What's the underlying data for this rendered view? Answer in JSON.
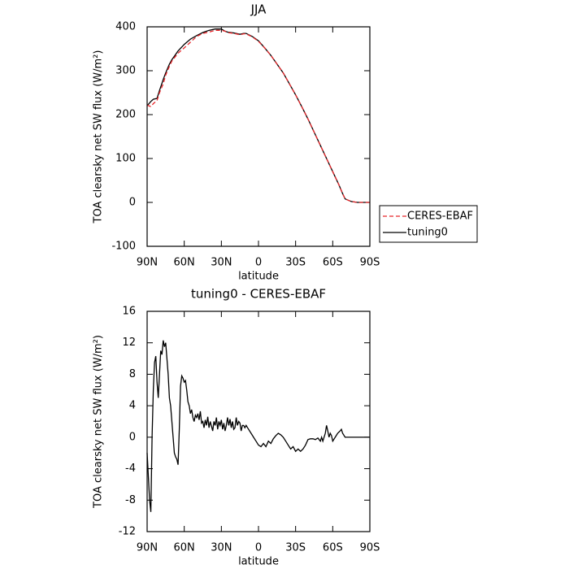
{
  "chart_data": [
    {
      "type": "line",
      "title": "JJA",
      "xlabel": "latitude",
      "ylabel": "TOA clearsky net SW flux (W/m²)",
      "xlim": [
        90,
        -90
      ],
      "ylim": [
        -100,
        400
      ],
      "xticks": [
        {
          "value": 90,
          "label": "90N"
        },
        {
          "value": 60,
          "label": "60N"
        },
        {
          "value": 30,
          "label": "30N"
        },
        0,
        {
          "value": -30,
          "label": "30S"
        },
        {
          "value": -60,
          "label": "60S"
        },
        {
          "value": -90,
          "label": "90S"
        }
      ],
      "yticks": [
        -100,
        0,
        100,
        200,
        300,
        400
      ],
      "legend": "right",
      "series": [
        {
          "name": "CERES-EBAF",
          "color": "#e8262a",
          "dashed": true,
          "x": [
            90,
            87,
            85,
            82,
            80,
            77,
            75,
            72,
            70,
            65,
            60,
            55,
            50,
            45,
            40,
            35,
            30,
            27,
            25,
            20,
            15,
            12,
            10,
            5,
            0,
            -5,
            -10,
            -15,
            -20,
            -25,
            -30,
            -35,
            -40,
            -45,
            -50,
            -55,
            -60,
            -65,
            -68,
            -70,
            -75,
            -80,
            -90
          ],
          "values": [
            222,
            218,
            225,
            232,
            250,
            270,
            290,
            310,
            322,
            340,
            352,
            365,
            378,
            385,
            388,
            392,
            392,
            390,
            387,
            385,
            382,
            384,
            384,
            377,
            367,
            352,
            335,
            315,
            295,
            270,
            245,
            218,
            190,
            160,
            130,
            100,
            70,
            40,
            20,
            8,
            2,
            0,
            0
          ]
        },
        {
          "name": "tuning0",
          "color": "#000000",
          "dashed": false,
          "x": [
            90,
            87,
            85,
            82,
            80,
            77,
            75,
            72,
            70,
            65,
            60,
            55,
            50,
            45,
            40,
            35,
            30,
            27,
            25,
            20,
            15,
            12,
            10,
            5,
            0,
            -5,
            -10,
            -15,
            -20,
            -25,
            -30,
            -35,
            -40,
            -45,
            -50,
            -55,
            -60,
            -65,
            -68,
            -70,
            -75,
            -80,
            -90
          ],
          "values": [
            220,
            230,
            235,
            237,
            255,
            280,
            295,
            315,
            325,
            345,
            360,
            372,
            380,
            387,
            392,
            395,
            395,
            390,
            388,
            386,
            383,
            385,
            385,
            378,
            368,
            352,
            335,
            315,
            295,
            270,
            245,
            218,
            190,
            160,
            130,
            100,
            70,
            40,
            20,
            8,
            2,
            0,
            0
          ]
        }
      ]
    },
    {
      "type": "line",
      "title": "tuning0 - CERES-EBAF",
      "xlabel": "latitude",
      "ylabel": "TOA clearsky net SW flux (W/m²)",
      "xlim": [
        90,
        -90
      ],
      "ylim": [
        -12,
        16
      ],
      "xticks": [
        {
          "value": 90,
          "label": "90N"
        },
        {
          "value": 60,
          "label": "60N"
        },
        {
          "value": 30,
          "label": "30N"
        },
        0,
        {
          "value": -30,
          "label": "30S"
        },
        {
          "value": -60,
          "label": "60S"
        },
        {
          "value": -90,
          "label": "90S"
        }
      ],
      "yticks": [
        -12,
        -8,
        -4,
        0,
        4,
        8,
        12,
        16
      ],
      "color": "#000000",
      "x": [
        90,
        88,
        87,
        86,
        85,
        84,
        83,
        82,
        81,
        80,
        79,
        78,
        77,
        76,
        75,
        74,
        73,
        72,
        71,
        70,
        69,
        68,
        67,
        66,
        65,
        64,
        63,
        62,
        61,
        60,
        59,
        58,
        57,
        56,
        55,
        54,
        53,
        52,
        51,
        50,
        49,
        48,
        47,
        46,
        45,
        44,
        43,
        42,
        41,
        40,
        39,
        38,
        37,
        36,
        35,
        34,
        33,
        32,
        31,
        30,
        29,
        28,
        27,
        26,
        25,
        24,
        23,
        22,
        21,
        20,
        19,
        18,
        17,
        16,
        15,
        14,
        13,
        12,
        11,
        10,
        8,
        6,
        4,
        2,
        0,
        -2,
        -4,
        -6,
        -8,
        -10,
        -12,
        -14,
        -16,
        -18,
        -20,
        -22,
        -24,
        -26,
        -28,
        -30,
        -32,
        -34,
        -36,
        -38,
        -40,
        -42,
        -44,
        -46,
        -48,
        -50,
        -51,
        -52,
        -54,
        -55,
        -56,
        -57,
        -58,
        -59,
        -60,
        -62,
        -64,
        -66,
        -67,
        -68,
        -70,
        -72,
        -80,
        -90
      ],
      "values": [
        -2,
        -8,
        -9.5,
        0,
        6,
        9.5,
        10.3,
        7,
        5,
        8,
        11,
        10.5,
        12.3,
        11.5,
        12,
        10,
        8,
        5,
        4,
        2,
        0,
        -2,
        -2.5,
        -2.8,
        -3.5,
        1,
        6.5,
        7.8,
        7.5,
        7,
        7.2,
        6,
        4.5,
        4,
        3,
        3.5,
        2.5,
        2,
        2.8,
        2.5,
        3,
        2.2,
        3.3,
        1.8,
        2,
        1.2,
        2.2,
        1.5,
        2.6,
        1.2,
        2,
        1.4,
        0.8,
        2,
        1.5,
        2.5,
        1,
        2,
        1.5,
        2.2,
        1,
        1.8,
        0.8,
        1.5,
        2.5,
        1.5,
        2.3,
        1.2,
        2,
        1,
        1.2,
        2.5,
        1.5,
        2,
        1.8,
        0.8,
        1.5,
        1.5,
        1.2,
        1.5,
        1,
        0.5,
        0,
        -0.5,
        -1,
        -1.2,
        -0.8,
        -1.2,
        -0.5,
        -0.8,
        -0.2,
        0.2,
        0.5,
        0.3,
        0,
        -0.5,
        -1,
        -1.5,
        -1.2,
        -1.8,
        -1.5,
        -1.8,
        -1.5,
        -1,
        -0.3,
        -0.2,
        -0.2,
        -0.3,
        -0.1,
        -0.5,
        0,
        -0.5,
        0.5,
        1.5,
        0.8,
        0,
        0.5,
        0.2,
        -0.5,
        0,
        0.5,
        0.8,
        1,
        0.5,
        0,
        0,
        0,
        0
      ]
    }
  ]
}
